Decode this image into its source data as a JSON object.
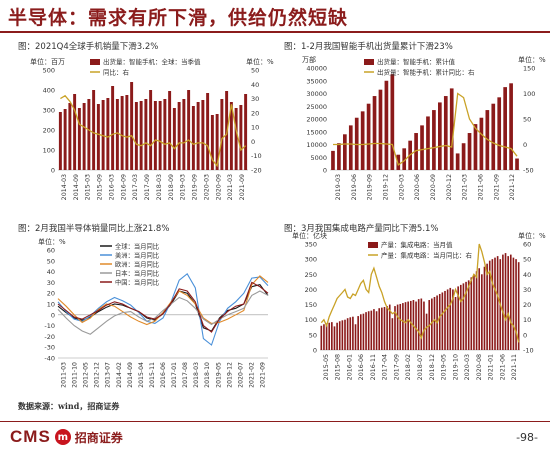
{
  "page": {
    "title": "半导体：需求有所下滑，供给仍然短缺",
    "source": "数据来源：wind，招商证券",
    "logo_text": "CMS",
    "logo_mark": "m",
    "logo_cn": "招商证券",
    "page_number": "-98-"
  },
  "chart_data": [
    {
      "id": "c1",
      "type": "bar+line",
      "title": "图：2021Q4全球手机销量下滑3.2%",
      "left_unit": "单位：百万",
      "right_unit": "单位：%",
      "legend": [
        "出货量：智能手机：全球：当季值",
        "同比：右"
      ],
      "series": [
        {
          "name": "出货量：智能手机：全球：当季值",
          "axis": "left",
          "kind": "bar",
          "color": "#8b1a1a",
          "values": [
            290,
            305,
            335,
            380,
            310,
            335,
            355,
            400,
            330,
            350,
            360,
            420,
            355,
            370,
            375,
            440,
            340,
            345,
            355,
            400,
            345,
            345,
            355,
            395,
            310,
            340,
            355,
            400,
            320,
            340,
            350,
            385,
            275,
            280,
            355,
            395,
            340,
            310,
            325,
            380
          ]
        },
        {
          "name": "同比：右",
          "axis": "right",
          "kind": "line",
          "color": "#c9a227",
          "values": [
            30,
            32,
            28,
            22,
            12,
            10,
            8,
            6,
            5,
            4,
            3,
            5,
            6,
            4,
            3,
            4,
            -2,
            -3,
            -1,
            -3,
            1,
            0,
            -2,
            -1,
            -5,
            -1,
            -1,
            1,
            -2,
            -1,
            -1,
            -3,
            -13,
            -17,
            2,
            5,
            26,
            8,
            -6,
            -3
          ]
        }
      ],
      "x_labels": [
        "2014-03",
        "2014-09",
        "2015-03",
        "2015-09",
        "2016-03",
        "2016-09",
        "2017-03",
        "2017-09",
        "2018-03",
        "2018-09",
        "2019-03",
        "2019-09",
        "2020-03",
        "2020-09",
        "2021-03",
        "2021-09"
      ],
      "left_ticks": [
        "0",
        "100",
        "200",
        "300",
        "400",
        "500"
      ],
      "right_ticks": [
        "-20",
        "-10",
        "0",
        "10",
        "20",
        "30",
        "40",
        "50"
      ],
      "ylim_left": [
        0,
        500
      ],
      "ylim_right": [
        -20,
        50
      ]
    },
    {
      "id": "c2",
      "type": "bar+line",
      "title": "图：1-2月我国智能手机出货量累计下滑23%",
      "left_unit": "万部",
      "right_unit": "单位：%",
      "legend": [
        "出货量：智能手机：累计值",
        "出货量：智能手机：累计同比：右"
      ],
      "series": [
        {
          "name": "出货量：智能手机：累计值",
          "axis": "left",
          "kind": "bar",
          "color": "#8b1a1a",
          "values": [
            7500,
            10500,
            14000,
            17500,
            20500,
            23000,
            26000,
            29000,
            31500,
            35000,
            37500,
            6000,
            8500,
            11500,
            14500,
            17500,
            21000,
            23500,
            26500,
            29000,
            32000,
            6500,
            10500,
            14500,
            18000,
            20500,
            23500,
            26000,
            28500,
            32500,
            34000,
            4500
          ]
        },
        {
          "name": "出货量：智能手机：累计同比：右",
          "axis": "right",
          "kind": "line",
          "color": "#c9a227",
          "values": [
            0,
            0,
            1,
            1,
            0,
            0,
            1,
            2,
            2,
            1,
            0,
            -40,
            -32,
            -20,
            -12,
            -10,
            -8,
            -6,
            -4,
            -2,
            -5,
            100,
            92,
            50,
            32,
            20,
            10,
            3,
            -2,
            -5,
            -8,
            -23
          ]
        }
      ],
      "x_labels": [
        "2019-03",
        "2019-06",
        "2019-09",
        "2019-12",
        "2020-03",
        "2020-06",
        "2020-09",
        "2020-12",
        "2021-03",
        "2021-06",
        "2021-09",
        "2021-12"
      ],
      "left_ticks": [
        "0",
        "5000",
        "10000",
        "15000",
        "20000",
        "25000",
        "30000",
        "35000",
        "40000"
      ],
      "right_ticks": [
        "-50",
        "0",
        "50",
        "100",
        "150"
      ],
      "ylim_left": [
        0,
        40000
      ],
      "ylim_right": [
        -50,
        150
      ]
    },
    {
      "id": "c3",
      "type": "line",
      "title": "图：2月我国半导体销量同比上涨21.8%",
      "left_unit": "单位：%",
      "legend": [
        "全球：当月同比",
        "美洲：当月同比",
        "欧洲：当月同比",
        "日本：当月同比",
        "中国：当月同比"
      ],
      "x_labels": [
        "2011-03",
        "2011-10",
        "2012-05",
        "2012-12",
        "2013-07",
        "2014-02",
        "2014-09",
        "2015-04",
        "2015-11",
        "2016-06",
        "2017-01",
        "2017-08",
        "2018-03",
        "2018-10",
        "2019-05",
        "2019-12",
        "2020-07",
        "2021-02",
        "2021-09"
      ],
      "left_ticks": [
        "-40",
        "-30",
        "-20",
        "-10",
        "0",
        "10",
        "20",
        "30",
        "40",
        "50",
        "60"
      ],
      "ylim": [
        -40,
        60
      ],
      "series": [
        {
          "name": "全球：当月同比",
          "color": "#1a1a1a",
          "values": [
            8,
            2,
            -3,
            -5,
            -2,
            3,
            7,
            10,
            9,
            6,
            3,
            -3,
            -5,
            1,
            10,
            22,
            20,
            10,
            -12,
            -15,
            -3,
            4,
            6,
            10,
            26,
            28,
            18
          ]
        },
        {
          "name": "美洲：当月同比",
          "color": "#4a90d9",
          "values": [
            12,
            3,
            -4,
            -6,
            -1,
            6,
            12,
            16,
            13,
            9,
            2,
            -6,
            -8,
            -3,
            12,
            32,
            38,
            25,
            -22,
            -28,
            -6,
            6,
            12,
            20,
            34,
            35,
            27
          ]
        },
        {
          "name": "欧洲：当月同比",
          "color": "#e08a2a",
          "values": [
            15,
            8,
            0,
            -7,
            -3,
            5,
            10,
            8,
            3,
            -2,
            -6,
            -9,
            -6,
            2,
            12,
            22,
            18,
            10,
            -3,
            -8,
            -7,
            -4,
            0,
            4,
            28,
            36,
            30
          ]
        },
        {
          "name": "日本：当月同比",
          "color": "#9a9a9a",
          "values": [
            5,
            -3,
            -10,
            -15,
            -18,
            -12,
            -6,
            -1,
            2,
            3,
            -2,
            -6,
            -3,
            4,
            10,
            16,
            13,
            6,
            -4,
            -9,
            -4,
            0,
            3,
            6,
            18,
            22,
            18
          ]
        },
        {
          "name": "中国：当月同比",
          "color": "#8b1a1a",
          "values": [
            10,
            4,
            -2,
            -4,
            0,
            4,
            9,
            12,
            10,
            6,
            3,
            -2,
            -4,
            1,
            11,
            24,
            22,
            12,
            -10,
            -16,
            -4,
            3,
            8,
            10,
            30,
            26,
            20
          ]
        }
      ]
    },
    {
      "id": "c4",
      "type": "bar+line",
      "title": "图：3月我国集成电路产量同比下滑5.1%",
      "left_unit": "单位：亿块",
      "right_unit": "单位：%",
      "legend": [
        "产量：集成电路：当月值",
        "产量：集成电路：当月同比：右"
      ],
      "x_labels": [
        "2015-05",
        "2015-08",
        "2016-01",
        "2016-06",
        "2016-11",
        "2017-04",
        "2017-09",
        "2018-02",
        "2018-07",
        "2018-12",
        "2019-05",
        "2019-10",
        "2020-03",
        "2020-08",
        "2021-01",
        "2021-06",
        "2021-11"
      ],
      "left_ticks": [
        "0",
        "50",
        "100",
        "150",
        "200",
        "250",
        "300",
        "350"
      ],
      "right_ticks": [
        "-10",
        "0",
        "10",
        "20",
        "30",
        "40",
        "50",
        "60"
      ],
      "ylim_left": [
        0,
        350
      ],
      "ylim_right": [
        -10,
        60
      ],
      "series": [
        {
          "name": "产量：集成电路：当月值",
          "axis": "left",
          "kind": "bar",
          "color": "#8b1a1a",
          "values": [
            80,
            85,
            88,
            90,
            92,
            78,
            90,
            95,
            98,
            100,
            105,
            108,
            110,
            85,
            112,
            118,
            120,
            125,
            128,
            130,
            135,
            128,
            138,
            140,
            142,
            145,
            150,
            105,
            145,
            150,
            152,
            155,
            158,
            160,
            162,
            165,
            160,
            168,
            170,
            160,
            120,
            165,
            170,
            175,
            180,
            185,
            190,
            195,
            200,
            205,
            200,
            175,
            210,
            215,
            220,
            225,
            230,
            240,
            250,
            260,
            270,
            250,
            275,
            285,
            295,
            300,
            305,
            310,
            300,
            315,
            320,
            310,
            315,
            305,
            300,
            290
          ]
        },
        {
          "name": "产量：集成电路：当月同比：右",
          "axis": "right",
          "kind": "line",
          "color": "#c9a227",
          "values": [
            8,
            10,
            6,
            12,
            16,
            20,
            24,
            26,
            28,
            30,
            25,
            24,
            27,
            26,
            30,
            34,
            36,
            30,
            28,
            40,
            44,
            38,
            32,
            28,
            22,
            18,
            16,
            14,
            15,
            12,
            10,
            9,
            8,
            10,
            8,
            6,
            4,
            2,
            -2,
            3,
            5,
            6,
            8,
            10,
            8,
            12,
            14,
            16,
            18,
            20,
            24,
            30,
            26,
            22,
            24,
            28,
            32,
            36,
            40,
            38,
            60,
            55,
            48,
            40,
            42,
            34,
            30,
            26,
            20,
            15,
            10,
            14,
            8,
            6,
            2,
            -5
          ]
        }
      ]
    }
  ]
}
